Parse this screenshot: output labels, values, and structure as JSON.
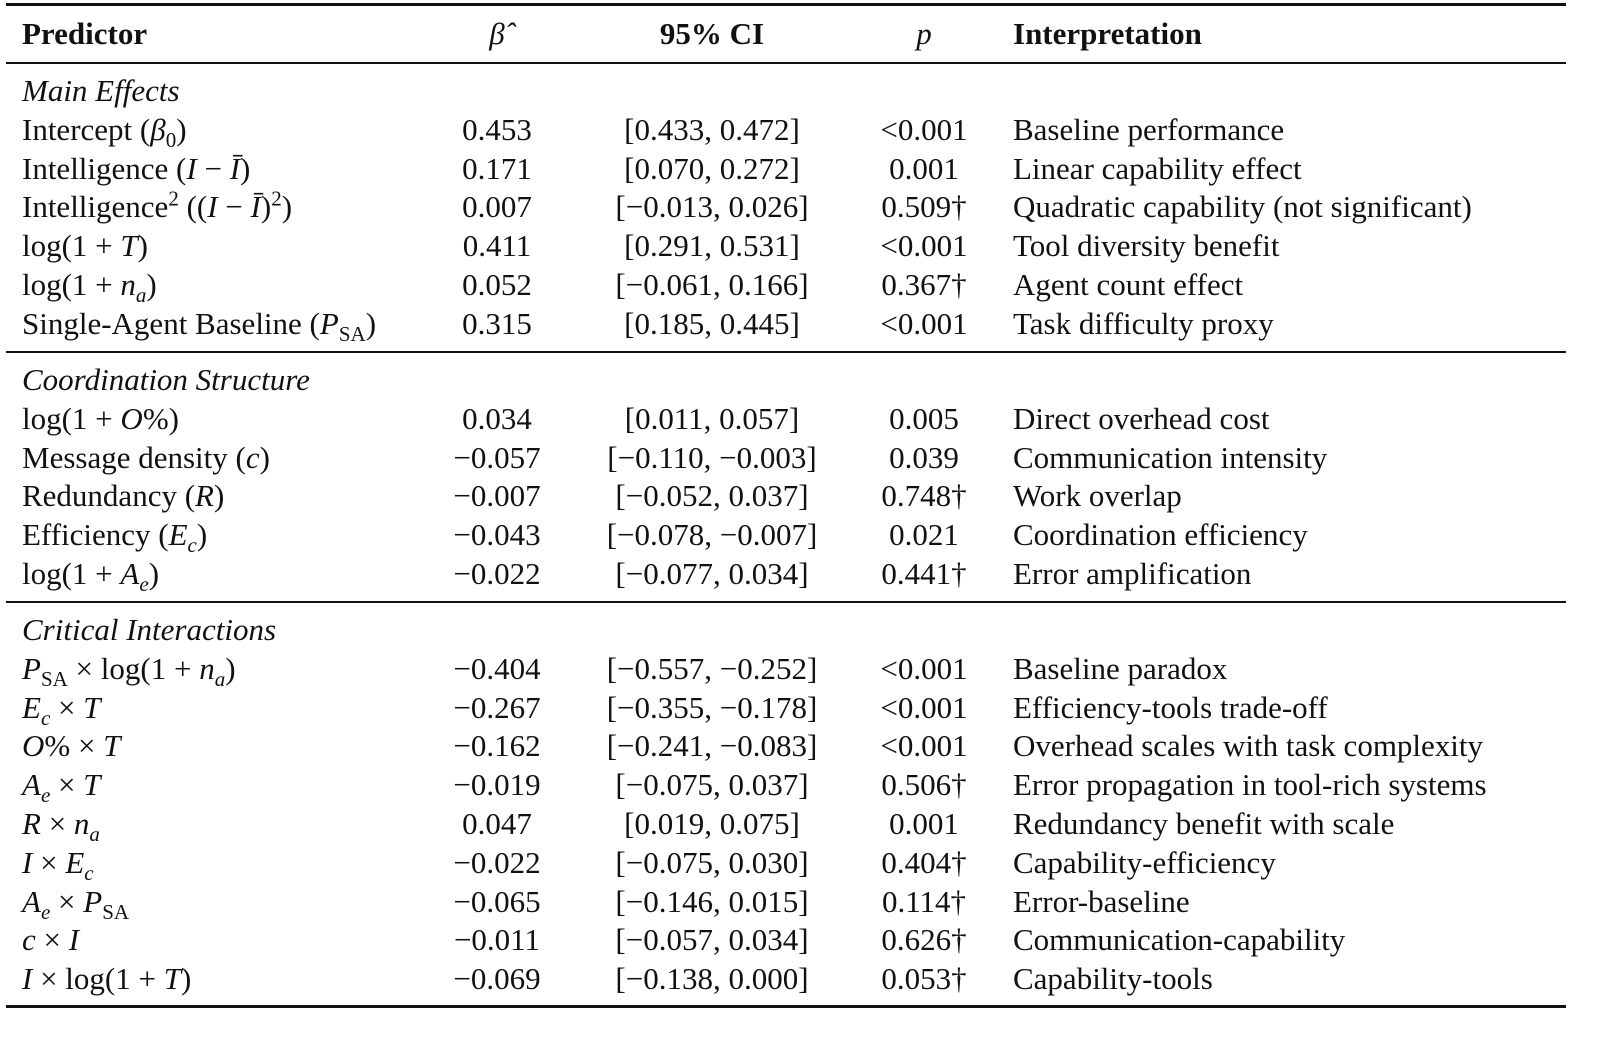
{
  "header": {
    "columns": [
      "Predictor",
      "β̂",
      "95% CI",
      "p",
      "Interpretation"
    ]
  },
  "sections": [
    {
      "title": "Main Effects",
      "rows": [
        {
          "predictor": [
            "Intercept (",
            {
              "i": "β"
            },
            {
              "sub": "0"
            },
            ")"
          ],
          "beta": "0.453",
          "ci": "[0.433, 0.472]",
          "p": "<0.001",
          "interpretation": "Baseline performance"
        },
        {
          "predictor": [
            "Intelligence (",
            {
              "i": "I"
            },
            " − ",
            {
              "i": "Ī"
            },
            ")"
          ],
          "beta": "0.171",
          "ci": "[0.070, 0.272]",
          "p": "0.001",
          "interpretation": "Linear capability effect"
        },
        {
          "predictor": [
            "Intelligence",
            {
              "sup": "2"
            },
            " ((",
            {
              "i": "I"
            },
            " − ",
            {
              "i": "Ī"
            },
            ")",
            {
              "sup": "2"
            },
            ")"
          ],
          "beta": "0.007",
          "ci": "[−0.013, 0.026]",
          "p": "0.509†",
          "interpretation": "Quadratic capability (not significant)"
        },
        {
          "predictor": [
            "log(1 + ",
            {
              "i": "T"
            },
            ")"
          ],
          "beta": "0.411",
          "ci": "[0.291, 0.531]",
          "p": "<0.001",
          "interpretation": "Tool diversity benefit"
        },
        {
          "predictor": [
            "log(1 + ",
            {
              "i": "n"
            },
            {
              "isub": "a"
            },
            ")"
          ],
          "beta": "0.052",
          "ci": "[−0.061, 0.166]",
          "p": "0.367†",
          "interpretation": "Agent count effect"
        },
        {
          "predictor": [
            "Single-Agent Baseline (",
            {
              "i": "P"
            },
            {
              "sub": "SA"
            },
            ")"
          ],
          "beta": "0.315",
          "ci": "[0.185, 0.445]",
          "p": "<0.001",
          "interpretation": "Task difficulty proxy"
        }
      ]
    },
    {
      "title": "Coordination Structure",
      "rows": [
        {
          "predictor": [
            "log(1 + ",
            {
              "i": "O"
            },
            "%)"
          ],
          "beta": "0.034",
          "ci": "[0.011, 0.057]",
          "p": "0.005",
          "interpretation": "Direct overhead cost"
        },
        {
          "predictor": [
            "Message density (",
            {
              "i": "c"
            },
            ")"
          ],
          "beta": "−0.057",
          "ci": "[−0.110, −0.003]",
          "p": "0.039",
          "interpretation": "Communication intensity"
        },
        {
          "predictor": [
            "Redundancy (",
            {
              "i": "R"
            },
            ")"
          ],
          "beta": "−0.007",
          "ci": "[−0.052, 0.037]",
          "p": "0.748†",
          "interpretation": "Work overlap"
        },
        {
          "predictor": [
            "Efficiency (",
            {
              "i": "E"
            },
            {
              "isub": "c"
            },
            ")"
          ],
          "beta": "−0.043",
          "ci": "[−0.078, −0.007]",
          "p": "0.021",
          "interpretation": "Coordination efficiency"
        },
        {
          "predictor": [
            "log(1 + ",
            {
              "i": "A"
            },
            {
              "isub": "e"
            },
            ")"
          ],
          "beta": "−0.022",
          "ci": "[−0.077, 0.034]",
          "p": "0.441†",
          "interpretation": "Error amplification"
        }
      ]
    },
    {
      "title": "Critical Interactions",
      "rows": [
        {
          "predictor": [
            {
              "i": "P"
            },
            {
              "sub": "SA"
            },
            " × log(1 + ",
            {
              "i": "n"
            },
            {
              "isub": "a"
            },
            ")"
          ],
          "beta": "−0.404",
          "ci": "[−0.557, −0.252]",
          "p": "<0.001",
          "interpretation": "Baseline paradox"
        },
        {
          "predictor": [
            {
              "i": "E"
            },
            {
              "isub": "c"
            },
            " × ",
            {
              "i": "T"
            }
          ],
          "beta": "−0.267",
          "ci": "[−0.355, −0.178]",
          "p": "<0.001",
          "interpretation": "Efficiency-tools trade-off"
        },
        {
          "predictor": [
            {
              "i": "O"
            },
            "% × ",
            {
              "i": "T"
            }
          ],
          "beta": "−0.162",
          "ci": "[−0.241, −0.083]",
          "p": "<0.001",
          "interpretation": "Overhead scales with task complexity"
        },
        {
          "predictor": [
            {
              "i": "A"
            },
            {
              "isub": "e"
            },
            " × ",
            {
              "i": "T"
            }
          ],
          "beta": "−0.019",
          "ci": "[−0.075, 0.037]",
          "p": "0.506†",
          "interpretation": "Error propagation in tool-rich systems"
        },
        {
          "predictor": [
            {
              "i": "R"
            },
            " × ",
            {
              "i": "n"
            },
            {
              "isub": "a"
            }
          ],
          "beta": "0.047",
          "ci": "[0.019, 0.075]",
          "p": "0.001",
          "interpretation": "Redundancy benefit with scale"
        },
        {
          "predictor": [
            {
              "i": "I"
            },
            " × ",
            {
              "i": "E"
            },
            {
              "isub": "c"
            }
          ],
          "beta": "−0.022",
          "ci": "[−0.075, 0.030]",
          "p": "0.404†",
          "interpretation": "Capability-efficiency"
        },
        {
          "predictor": [
            {
              "i": "A"
            },
            {
              "isub": "e"
            },
            " × ",
            {
              "i": "P"
            },
            {
              "sub": "SA"
            }
          ],
          "beta": "−0.065",
          "ci": "[−0.146, 0.015]",
          "p": "0.114†",
          "interpretation": "Error-baseline"
        },
        {
          "predictor": [
            {
              "i": "c"
            },
            " × ",
            {
              "i": "I"
            }
          ],
          "beta": "−0.011",
          "ci": "[−0.057, 0.034]",
          "p": "0.626†",
          "interpretation": "Communication-capability"
        },
        {
          "predictor": [
            {
              "i": "I"
            },
            " × log(1 + ",
            {
              "i": "T"
            },
            ")"
          ],
          "beta": "−0.069",
          "ci": "[−0.138, 0.000]",
          "p": "0.053†",
          "interpretation": "Capability-tools"
        }
      ]
    }
  ]
}
